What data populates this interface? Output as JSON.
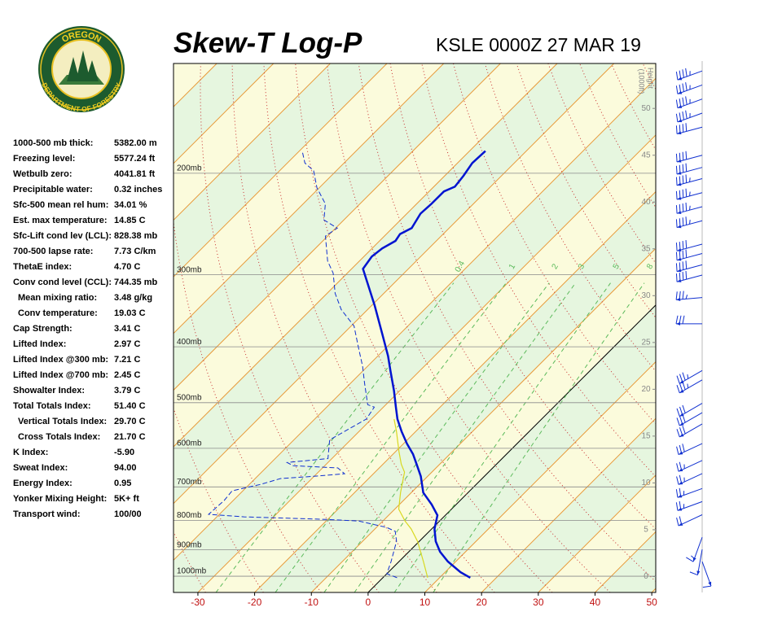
{
  "logo": {
    "top": "OREGON",
    "bottom": "DEPARTMENT OF FORESTRY"
  },
  "stats": {
    "rows": [
      {
        "label": "1000-500 mb thick:",
        "value": "5382.00 m"
      },
      {
        "label": "Freezing level:",
        "value": "5577.24 ft"
      },
      {
        "label": "Wetbulb zero:",
        "value": "4041.81 ft"
      },
      {
        "label": "Precipitable water:",
        "value": "0.32 inches"
      },
      {
        "label": "Sfc-500 mean rel hum:",
        "value": "34.01 %"
      },
      {
        "label": "Est. max temperature:",
        "value": "14.85 C"
      },
      {
        "label": "Sfc-Lift cond lev (LCL):",
        "value": "828.38 mb"
      },
      {
        "label": "700-500 lapse rate:",
        "value": "7.73 C/km"
      },
      {
        "label": "ThetaE index:",
        "value": "4.70 C"
      },
      {
        "label": "Conv cond level (CCL):",
        "value": "744.35 mb"
      },
      {
        "label": "Mean mixing ratio:",
        "value": "3.48 g/kg"
      },
      {
        "label": "Conv temperature:",
        "value": "19.03 C"
      },
      {
        "label": "Cap Strength:",
        "value": "3.41 C"
      },
      {
        "label": "Lifted Index:",
        "value": "2.97 C"
      },
      {
        "label": "Lifted Index @300 mb:",
        "value": "7.21 C"
      },
      {
        "label": "Lifted Index @700 mb:",
        "value": "2.45 C"
      },
      {
        "label": "Showalter Index:",
        "value": "3.79 C"
      },
      {
        "label": "Total Totals Index:",
        "value": "51.40 C"
      },
      {
        "label": "Vertical Totals Index:",
        "value": "29.70 C"
      },
      {
        "label": "Cross Totals Index:",
        "value": "21.70 C"
      },
      {
        "label": "K Index:",
        "value": "-5.90"
      },
      {
        "label": "Sweat Index:",
        "value": "94.00"
      },
      {
        "label": "Energy Index:",
        "value": "0.95"
      },
      {
        "label": "Yonker Mixing Height:",
        "value": "5K+ ft"
      },
      {
        "label": "Transport wind:",
        "value": "100/00"
      }
    ]
  },
  "chart_data": {
    "type": "skewt",
    "title": "Skew-T Log-P",
    "subtitle": "KSLE 0000Z 27 MAR 19",
    "ylog": true,
    "ylim": [
      1067,
      129
    ],
    "yticks": [
      {
        "value": 1000,
        "label": "1000mb"
      },
      {
        "value": 900,
        "label": "900mb"
      },
      {
        "value": 800,
        "label": "800mb"
      },
      {
        "value": 700,
        "label": "700mb"
      },
      {
        "value": 600,
        "label": "600mb"
      },
      {
        "value": 500,
        "label": "500mb"
      },
      {
        "value": 400,
        "label": "400mb"
      },
      {
        "value": 300,
        "label": "300mb"
      },
      {
        "value": 200,
        "label": "200mb"
      }
    ],
    "xlim": [
      -34.3,
      50.7
    ],
    "xticks": [
      -30,
      -20,
      -10,
      0,
      10,
      20,
      30,
      40,
      50
    ],
    "y2lim": [
      -1.7,
      54.8
    ],
    "y2ticks": [
      0,
      5,
      10,
      15,
      20,
      25,
      30,
      35,
      40,
      45,
      50
    ],
    "y2label": [
      "Height",
      "(1000ft)"
    ],
    "mixing_ratios": [
      0.4,
      1,
      2,
      3,
      5,
      8
    ],
    "series": [
      {
        "color": "#0014d0",
        "dash": false,
        "y": [
          1006,
          984,
          943,
          907,
          870,
          828,
          784,
          751,
          716,
          671,
          639,
          614,
          589,
          561,
          534,
          509,
          477,
          440,
          415,
          380,
          339,
          293,
          279,
          270,
          262,
          255,
          249,
          235,
          226,
          215,
          211,
          202,
          192,
          183
        ],
        "values": [
          15.4,
          12.7,
          8.6,
          5.5,
          2.9,
          0.5,
          -1.4,
          -4.3,
          -7.9,
          -11.2,
          -14.1,
          -16.5,
          -19.4,
          -22.5,
          -25.4,
          -27.8,
          -31.0,
          -35.2,
          -38.2,
          -43.1,
          -49.5,
          -58.0,
          -58.6,
          -58.2,
          -57.2,
          -57.6,
          -56.6,
          -57.6,
          -57.4,
          -57.4,
          -56.3,
          -56.7,
          -57.4,
          -57.2
        ]
      },
      {
        "color": "#1030d0",
        "dash": true,
        "y": [
          1006,
          990,
          943,
          870,
          836,
          823,
          802,
          797,
          789,
          781,
          739,
          711,
          693,
          677,
          671,
          664,
          649,
          643,
          635,
          625,
          580,
          534,
          509,
          504,
          462,
          433,
          399,
          368,
          345,
          323,
          298,
          284,
          257,
          249,
          241,
          226,
          212,
          198,
          192,
          183
        ],
        "values": [
          2.5,
          0.0,
          -1.4,
          -4.0,
          -6.0,
          -8.2,
          -14.3,
          -20.4,
          -35.2,
          -41.9,
          -41.6,
          -41.9,
          -38.0,
          -35.5,
          -30.1,
          -25.1,
          -27.3,
          -35.6,
          -37.2,
          -30.7,
          -33.7,
          -30.9,
          -31.6,
          -33.2,
          -37.6,
          -40.8,
          -45.2,
          -49.5,
          -54.6,
          -58.6,
          -62.5,
          -65.6,
          -70.4,
          -69.7,
          -73.5,
          -76.1,
          -80.4,
          -84.0,
          -86.9,
          -89.5
        ]
      },
      {
        "color": "#d8d820",
        "dash": false,
        "y": [
          1006,
          943,
          870,
          828,
          802,
          765,
          716,
          660,
          639,
          608,
          561,
          534
        ],
        "values": [
          7.9,
          4.3,
          -0.3,
          -3.6,
          -6.1,
          -9.3,
          -11.9,
          -14.8,
          -16.8,
          -19.4,
          -23.4,
          -26.0
        ]
      }
    ],
    "winds": {
      "color": "#1030d0",
      "height": [
        54,
        52.5,
        51,
        49.5,
        48,
        45,
        43.7,
        42.5,
        41,
        39.5,
        38,
        35.5,
        34.5,
        33.3,
        32.2,
        29.8,
        27,
        22,
        21,
        18.5,
        17.5,
        16.3,
        14.2,
        12.4,
        11,
        9.4,
        8,
        6.6,
        4.2,
        2.9,
        1.6
      ],
      "direction": [
        250,
        250,
        250,
        250,
        255,
        255,
        255,
        255,
        255,
        255,
        255,
        255,
        255,
        255,
        255,
        265,
        270,
        240,
        240,
        240,
        240,
        240,
        245,
        245,
        245,
        250,
        250,
        245,
        200,
        190,
        160
      ],
      "speed": [
        45,
        45,
        45,
        45,
        40,
        40,
        40,
        45,
        45,
        45,
        45,
        40,
        40,
        40,
        40,
        35,
        30,
        35,
        35,
        30,
        30,
        30,
        30,
        25,
        25,
        25,
        25,
        20,
        15,
        10,
        10
      ]
    }
  }
}
